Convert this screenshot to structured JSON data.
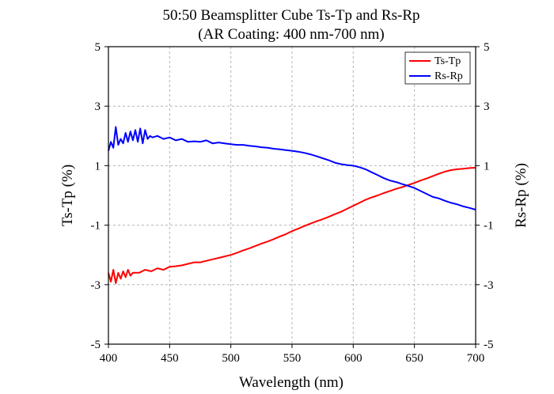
{
  "chart_data": {
    "type": "line",
    "title": "50:50 Beamsplitter Cube Ts-Tp and Rs-Rp",
    "subtitle": "(AR Coating: 400 nm-700 nm)",
    "xlabel": "Wavelength (nm)",
    "ylabel_left": "Ts-Tp (%)",
    "ylabel_right": "Rs-Rp (%)",
    "xlim": [
      400,
      700
    ],
    "ylim": [
      -5,
      5
    ],
    "x_ticks": [
      "400",
      "450",
      "500",
      "550",
      "600",
      "650",
      "700"
    ],
    "y_ticks": [
      "-5",
      "-3",
      "-1",
      "1",
      "3",
      "5"
    ],
    "grid": "dashed",
    "legend_position": "top-right",
    "series": [
      {
        "name": "Ts-Tp",
        "color": "#ff0000",
        "x": [
          400,
          402,
          404,
          406,
          408,
          410,
          412,
          414,
          416,
          418,
          420,
          425,
          430,
          435,
          440,
          445,
          450,
          455,
          460,
          465,
          470,
          475,
          480,
          485,
          490,
          495,
          500,
          505,
          510,
          515,
          520,
          525,
          530,
          535,
          540,
          545,
          550,
          555,
          560,
          565,
          570,
          575,
          580,
          585,
          590,
          595,
          600,
          605,
          610,
          615,
          620,
          625,
          630,
          635,
          640,
          645,
          650,
          655,
          660,
          665,
          670,
          675,
          680,
          685,
          690,
          695,
          700
        ],
        "y": [
          -2.6,
          -2.9,
          -2.5,
          -2.95,
          -2.6,
          -2.8,
          -2.55,
          -2.75,
          -2.5,
          -2.7,
          -2.6,
          -2.6,
          -2.5,
          -2.55,
          -2.45,
          -2.5,
          -2.4,
          -2.38,
          -2.35,
          -2.3,
          -2.25,
          -2.25,
          -2.2,
          -2.15,
          -2.1,
          -2.05,
          -2.0,
          -1.93,
          -1.85,
          -1.78,
          -1.7,
          -1.62,
          -1.55,
          -1.47,
          -1.38,
          -1.3,
          -1.2,
          -1.12,
          -1.03,
          -0.95,
          -0.87,
          -0.8,
          -0.72,
          -0.63,
          -0.55,
          -0.45,
          -0.35,
          -0.25,
          -0.15,
          -0.07,
          0.0,
          0.08,
          0.15,
          0.22,
          0.28,
          0.35,
          0.42,
          0.5,
          0.57,
          0.65,
          0.73,
          0.8,
          0.85,
          0.88,
          0.9,
          0.92,
          0.93
        ]
      },
      {
        "name": "Rs-Rp",
        "color": "#0000ff",
        "x": [
          400,
          402,
          404,
          406,
          408,
          410,
          412,
          414,
          416,
          418,
          420,
          422,
          424,
          426,
          428,
          430,
          432,
          434,
          436,
          440,
          445,
          450,
          455,
          460,
          465,
          470,
          475,
          480,
          485,
          490,
          495,
          500,
          505,
          510,
          515,
          520,
          525,
          530,
          535,
          540,
          545,
          550,
          555,
          560,
          565,
          570,
          575,
          580,
          585,
          590,
          595,
          600,
          605,
          610,
          615,
          620,
          625,
          630,
          635,
          640,
          645,
          650,
          655,
          660,
          665,
          670,
          675,
          680,
          685,
          690,
          695,
          700
        ],
        "y": [
          1.5,
          1.8,
          1.6,
          2.3,
          1.7,
          1.9,
          1.75,
          2.1,
          1.8,
          2.15,
          1.85,
          2.2,
          1.8,
          2.25,
          1.75,
          2.2,
          1.9,
          2.0,
          1.95,
          2.0,
          1.9,
          1.95,
          1.85,
          1.9,
          1.8,
          1.82,
          1.8,
          1.85,
          1.75,
          1.78,
          1.75,
          1.72,
          1.7,
          1.7,
          1.67,
          1.65,
          1.62,
          1.6,
          1.57,
          1.55,
          1.52,
          1.5,
          1.47,
          1.43,
          1.38,
          1.32,
          1.25,
          1.18,
          1.1,
          1.05,
          1.02,
          1.0,
          0.95,
          0.88,
          0.78,
          0.68,
          0.58,
          0.5,
          0.45,
          0.38,
          0.32,
          0.25,
          0.15,
          0.05,
          -0.05,
          -0.1,
          -0.18,
          -0.25,
          -0.3,
          -0.37,
          -0.42,
          -0.48
        ]
      }
    ]
  }
}
